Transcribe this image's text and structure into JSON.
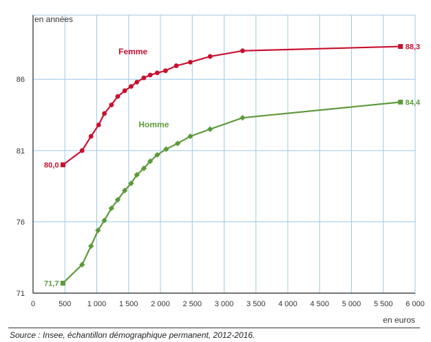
{
  "chart_data": {
    "type": "line",
    "ylabel": "en années",
    "xlabel": "en euros",
    "xlim": [
      0,
      6000
    ],
    "ylim": [
      71,
      90.5
    ],
    "grid": true,
    "x_ticks": [
      {
        "v": 0,
        "label": "0"
      },
      {
        "v": 500,
        "label": "500"
      },
      {
        "v": 1000,
        "label": "1 000"
      },
      {
        "v": 1500,
        "label": "1 500"
      },
      {
        "v": 2000,
        "label": "2 000"
      },
      {
        "v": 2500,
        "label": "2 500"
      },
      {
        "v": 3000,
        "label": "3 000"
      },
      {
        "v": 3500,
        "label": "3 500"
      },
      {
        "v": 4000,
        "label": "4 000"
      },
      {
        "v": 4500,
        "label": "4 500"
      },
      {
        "v": 5000,
        "label": "5 000"
      },
      {
        "v": 5500,
        "label": "5 500"
      },
      {
        "v": 6000,
        "label": "6 000"
      }
    ],
    "y_ticks": [
      {
        "v": 71,
        "label": "71"
      },
      {
        "v": 76,
        "label": "76"
      },
      {
        "v": 81,
        "label": "81"
      },
      {
        "v": 86,
        "label": "86"
      }
    ],
    "series": [
      {
        "name": "Femme",
        "color": "#c8102e",
        "marker": "circle",
        "points": [
          [
            470,
            80.0
          ],
          [
            770,
            81.0
          ],
          [
            910,
            82.0
          ],
          [
            1030,
            82.8
          ],
          [
            1120,
            83.6
          ],
          [
            1230,
            84.2
          ],
          [
            1330,
            84.8
          ],
          [
            1440,
            85.2
          ],
          [
            1540,
            85.5
          ],
          [
            1630,
            85.8
          ],
          [
            1740,
            86.1
          ],
          [
            1840,
            86.3
          ],
          [
            1950,
            86.45
          ],
          [
            2080,
            86.6
          ],
          [
            2250,
            86.95
          ],
          [
            2470,
            87.2
          ],
          [
            2780,
            87.6
          ],
          [
            3290,
            88.0
          ],
          [
            5770,
            88.3
          ]
        ],
        "first_label": "80,0",
        "last_label": "88,3"
      },
      {
        "name": "Homme",
        "color": "#5c9a3a",
        "marker": "diamond",
        "points": [
          [
            470,
            71.7
          ],
          [
            770,
            73.0
          ],
          [
            910,
            74.3
          ],
          [
            1020,
            75.4
          ],
          [
            1120,
            76.1
          ],
          [
            1230,
            76.95
          ],
          [
            1330,
            77.55
          ],
          [
            1440,
            78.2
          ],
          [
            1540,
            78.7
          ],
          [
            1630,
            79.3
          ],
          [
            1740,
            79.75
          ],
          [
            1840,
            80.25
          ],
          [
            1950,
            80.7
          ],
          [
            2090,
            81.1
          ],
          [
            2270,
            81.5
          ],
          [
            2470,
            82.0
          ],
          [
            2780,
            82.5
          ],
          [
            3290,
            83.3
          ],
          [
            5770,
            84.4
          ]
        ],
        "first_label": "71,7",
        "last_label": "84,4"
      }
    ]
  },
  "source_text": "Source : Insee, échantillon démographique permanent, 2012-2016."
}
